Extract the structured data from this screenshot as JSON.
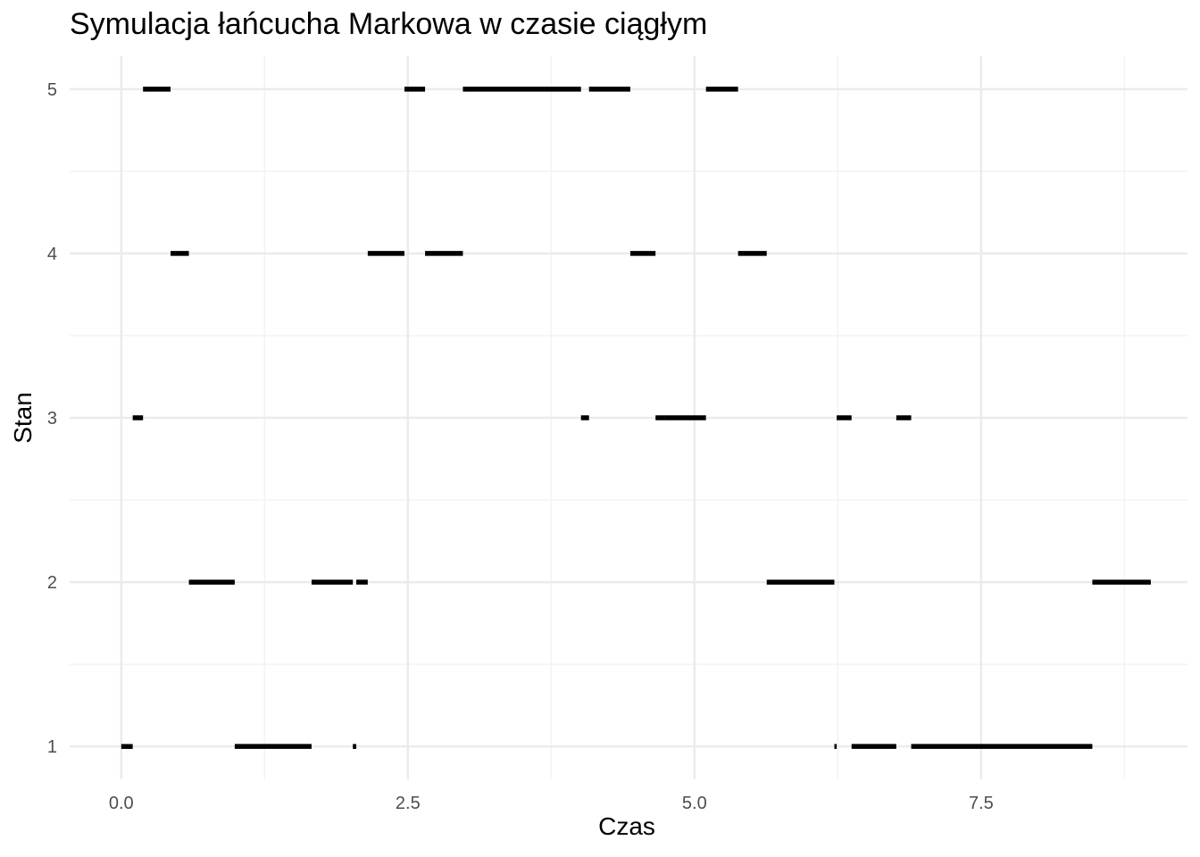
{
  "chart_data": {
    "type": "step-segments",
    "title": "Symulacja łańcucha Markowa w czasie ciągłym",
    "xlabel": "Czas",
    "ylabel": "Stan",
    "xlim": [
      -0.45,
      9.3
    ],
    "ylim": [
      0.8,
      5.2
    ],
    "x_ticks": [
      0.0,
      2.5,
      5.0,
      7.5
    ],
    "x_tick_labels": [
      "0.0",
      "2.5",
      "5.0",
      "7.5"
    ],
    "y_ticks": [
      1,
      2,
      3,
      4,
      5
    ],
    "y_tick_labels": [
      "1",
      "2",
      "3",
      "4",
      "5"
    ],
    "grid": true,
    "segment_color": "#000000",
    "grid_major_color": "#ebebeb",
    "segments": [
      {
        "x_start": 0.0,
        "x_end": 0.1,
        "state": 1
      },
      {
        "x_start": 0.1,
        "x_end": 0.19,
        "state": 3
      },
      {
        "x_start": 0.19,
        "x_end": 0.43,
        "state": 5
      },
      {
        "x_start": 0.43,
        "x_end": 0.59,
        "state": 4
      },
      {
        "x_start": 0.59,
        "x_end": 0.99,
        "state": 2
      },
      {
        "x_start": 0.99,
        "x_end": 1.66,
        "state": 1
      },
      {
        "x_start": 1.66,
        "x_end": 2.02,
        "state": 2
      },
      {
        "x_start": 2.02,
        "x_end": 2.05,
        "state": 1
      },
      {
        "x_start": 2.05,
        "x_end": 2.15,
        "state": 2
      },
      {
        "x_start": 2.15,
        "x_end": 2.47,
        "state": 4
      },
      {
        "x_start": 2.47,
        "x_end": 2.65,
        "state": 5
      },
      {
        "x_start": 2.65,
        "x_end": 2.98,
        "state": 4
      },
      {
        "x_start": 2.98,
        "x_end": 4.01,
        "state": 5
      },
      {
        "x_start": 4.01,
        "x_end": 4.08,
        "state": 3
      },
      {
        "x_start": 4.08,
        "x_end": 4.44,
        "state": 5
      },
      {
        "x_start": 4.44,
        "x_end": 4.66,
        "state": 4
      },
      {
        "x_start": 4.66,
        "x_end": 4.74,
        "state": 3.0001,
        "state_note": ""
      },
      {
        "x_start": 4.74,
        "x_end": 5.1,
        "state": 3
      },
      {
        "x_start": 5.1,
        "x_end": 5.38,
        "state": 5
      },
      {
        "x_start": 5.38,
        "x_end": 5.63,
        "state": 4
      },
      {
        "x_start": 5.63,
        "x_end": 6.22,
        "state": 2
      },
      {
        "x_start": 6.22,
        "x_end": 6.24,
        "state": 1
      },
      {
        "x_start": 6.24,
        "x_end": 6.37,
        "state": 3
      },
      {
        "x_start": 6.37,
        "x_end": 6.76,
        "state": 1
      },
      {
        "x_start": 6.76,
        "x_end": 6.89,
        "state": 3
      },
      {
        "x_start": 6.89,
        "x_end": 8.47,
        "state": 1
      },
      {
        "x_start": 8.47,
        "x_end": 8.98,
        "state": 2
      }
    ]
  }
}
